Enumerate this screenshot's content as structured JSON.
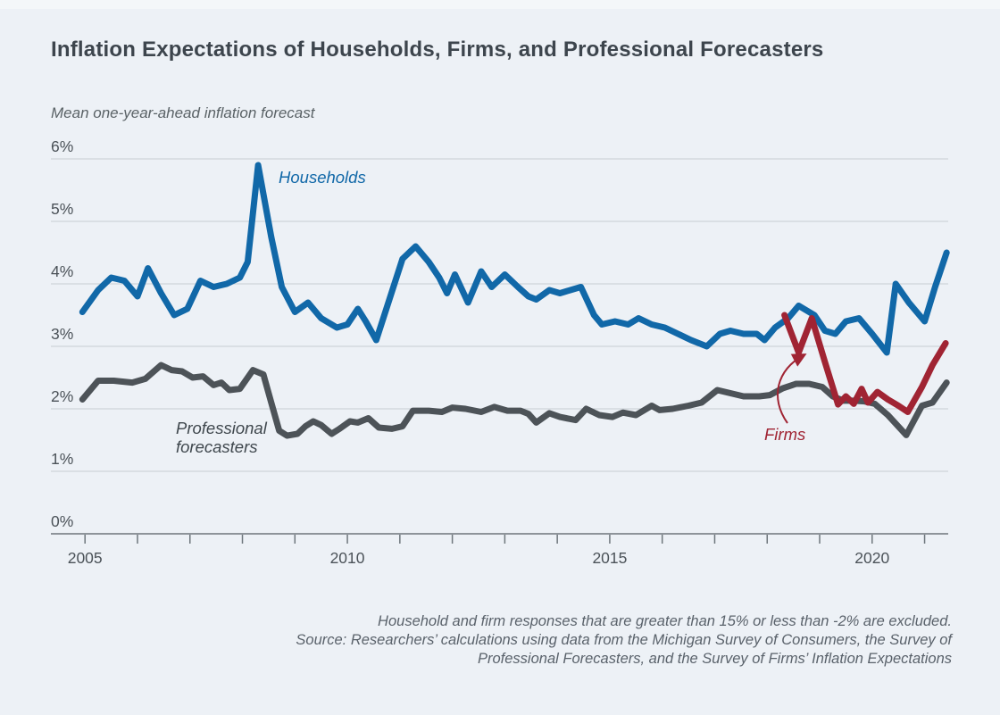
{
  "title": "Inflation Expectations of Households, Firms, and Professional Forecasters",
  "subtitle": "Mean one-year-ahead inflation forecast",
  "labels": {
    "households": "Households",
    "professional_line1": "Professional",
    "professional_line2": "forecasters",
    "firms": "Firms"
  },
  "footnote_lines": [
    "Household and firm responses that are greater than 15% or less than -2% are excluded.",
    "Source: Researchers’ calculations using data from the Michigan Survey of Consumers, the Survey of",
    "Professional Forecasters, and the Survey of Firms’ Inflation Expectations"
  ],
  "colors": {
    "background": "#edf1f6",
    "grid": "#c7cdd3",
    "axis": "#6e767c",
    "title": "#3d454d",
    "text": "#4b5258",
    "footnote": "#5a626b",
    "households": "#1168a8",
    "professional": "#4d5358",
    "firms": "#a02433"
  },
  "chart_data": {
    "type": "line",
    "title": "Inflation Expectations of Households, Firms, and Professional Forecasters",
    "ylabel": "Mean one-year-ahead inflation forecast",
    "xlim": [
      2004.35,
      2021.45
    ],
    "ylim": [
      0,
      6
    ],
    "y_ticks": [
      0,
      1,
      2,
      3,
      4,
      5,
      6
    ],
    "y_tick_suffix": "%",
    "x_ticks": [
      2005,
      2006,
      2007,
      2008,
      2009,
      2010,
      2011,
      2012,
      2013,
      2014,
      2015,
      2016,
      2017,
      2018,
      2019,
      2020,
      2021
    ],
    "x_labeled_ticks": [
      2005,
      2010,
      2015,
      2020
    ],
    "grid": "horizontal",
    "legend_position": "inline-labels",
    "series": [
      {
        "name": "Households",
        "color": "#1168a8",
        "points": [
          [
            2004.95,
            3.55
          ],
          [
            2005.25,
            3.9
          ],
          [
            2005.5,
            4.1
          ],
          [
            2005.75,
            4.05
          ],
          [
            2006.0,
            3.8
          ],
          [
            2006.2,
            4.25
          ],
          [
            2006.45,
            3.85
          ],
          [
            2006.7,
            3.5
          ],
          [
            2006.95,
            3.6
          ],
          [
            2007.2,
            4.05
          ],
          [
            2007.45,
            3.95
          ],
          [
            2007.7,
            4.0
          ],
          [
            2007.95,
            4.1
          ],
          [
            2008.1,
            4.35
          ],
          [
            2008.3,
            5.9
          ],
          [
            2008.55,
            4.75
          ],
          [
            2008.75,
            3.95
          ],
          [
            2009.0,
            3.55
          ],
          [
            2009.25,
            3.7
          ],
          [
            2009.5,
            3.45
          ],
          [
            2009.8,
            3.3
          ],
          [
            2010.0,
            3.35
          ],
          [
            2010.2,
            3.6
          ],
          [
            2010.35,
            3.4
          ],
          [
            2010.55,
            3.1
          ],
          [
            2010.8,
            3.75
          ],
          [
            2011.05,
            4.4
          ],
          [
            2011.3,
            4.6
          ],
          [
            2011.55,
            4.35
          ],
          [
            2011.75,
            4.1
          ],
          [
            2011.9,
            3.85
          ],
          [
            2012.05,
            4.15
          ],
          [
            2012.3,
            3.7
          ],
          [
            2012.55,
            4.2
          ],
          [
            2012.75,
            3.95
          ],
          [
            2013.0,
            4.15
          ],
          [
            2013.25,
            3.95
          ],
          [
            2013.45,
            3.8
          ],
          [
            2013.6,
            3.75
          ],
          [
            2013.85,
            3.9
          ],
          [
            2014.05,
            3.85
          ],
          [
            2014.25,
            3.9
          ],
          [
            2014.45,
            3.95
          ],
          [
            2014.7,
            3.5
          ],
          [
            2014.85,
            3.35
          ],
          [
            2015.1,
            3.4
          ],
          [
            2015.35,
            3.35
          ],
          [
            2015.55,
            3.45
          ],
          [
            2015.8,
            3.35
          ],
          [
            2016.05,
            3.3
          ],
          [
            2016.3,
            3.2
          ],
          [
            2016.55,
            3.1
          ],
          [
            2016.85,
            3.0
          ],
          [
            2017.1,
            3.2
          ],
          [
            2017.3,
            3.25
          ],
          [
            2017.55,
            3.2
          ],
          [
            2017.8,
            3.2
          ],
          [
            2017.95,
            3.1
          ],
          [
            2018.15,
            3.3
          ],
          [
            2018.4,
            3.45
          ],
          [
            2018.6,
            3.65
          ],
          [
            2018.9,
            3.5
          ],
          [
            2019.1,
            3.25
          ],
          [
            2019.3,
            3.2
          ],
          [
            2019.5,
            3.4
          ],
          [
            2019.75,
            3.45
          ],
          [
            2020.0,
            3.2
          ],
          [
            2020.28,
            2.9
          ],
          [
            2020.45,
            4.0
          ],
          [
            2020.7,
            3.7
          ],
          [
            2021.0,
            3.4
          ],
          [
            2021.2,
            3.95
          ],
          [
            2021.42,
            4.5
          ]
        ]
      },
      {
        "name": "Professional forecasters",
        "color": "#4d5358",
        "points": [
          [
            2004.95,
            2.15
          ],
          [
            2005.25,
            2.45
          ],
          [
            2005.55,
            2.45
          ],
          [
            2005.9,
            2.42
          ],
          [
            2006.15,
            2.48
          ],
          [
            2006.45,
            2.7
          ],
          [
            2006.65,
            2.62
          ],
          [
            2006.85,
            2.6
          ],
          [
            2007.05,
            2.5
          ],
          [
            2007.25,
            2.52
          ],
          [
            2007.45,
            2.38
          ],
          [
            2007.6,
            2.42
          ],
          [
            2007.75,
            2.3
          ],
          [
            2007.95,
            2.32
          ],
          [
            2008.2,
            2.62
          ],
          [
            2008.4,
            2.55
          ],
          [
            2008.55,
            2.1
          ],
          [
            2008.7,
            1.65
          ],
          [
            2008.85,
            1.57
          ],
          [
            2009.05,
            1.6
          ],
          [
            2009.2,
            1.72
          ],
          [
            2009.35,
            1.8
          ],
          [
            2009.5,
            1.74
          ],
          [
            2009.7,
            1.6
          ],
          [
            2009.85,
            1.68
          ],
          [
            2010.05,
            1.8
          ],
          [
            2010.2,
            1.78
          ],
          [
            2010.4,
            1.85
          ],
          [
            2010.6,
            1.7
          ],
          [
            2010.85,
            1.68
          ],
          [
            2011.05,
            1.72
          ],
          [
            2011.25,
            1.97
          ],
          [
            2011.55,
            1.97
          ],
          [
            2011.8,
            1.95
          ],
          [
            2012.0,
            2.02
          ],
          [
            2012.25,
            2.0
          ],
          [
            2012.55,
            1.95
          ],
          [
            2012.8,
            2.03
          ],
          [
            2013.05,
            1.97
          ],
          [
            2013.3,
            1.97
          ],
          [
            2013.45,
            1.92
          ],
          [
            2013.6,
            1.78
          ],
          [
            2013.85,
            1.93
          ],
          [
            2014.05,
            1.87
          ],
          [
            2014.35,
            1.82
          ],
          [
            2014.55,
            2.0
          ],
          [
            2014.8,
            1.9
          ],
          [
            2015.05,
            1.87
          ],
          [
            2015.25,
            1.94
          ],
          [
            2015.5,
            1.9
          ],
          [
            2015.8,
            2.05
          ],
          [
            2015.95,
            1.98
          ],
          [
            2016.2,
            2.0
          ],
          [
            2016.5,
            2.05
          ],
          [
            2016.75,
            2.1
          ],
          [
            2017.05,
            2.3
          ],
          [
            2017.3,
            2.25
          ],
          [
            2017.55,
            2.2
          ],
          [
            2017.85,
            2.2
          ],
          [
            2018.05,
            2.22
          ],
          [
            2018.3,
            2.33
          ],
          [
            2018.55,
            2.4
          ],
          [
            2018.8,
            2.4
          ],
          [
            2019.05,
            2.35
          ],
          [
            2019.25,
            2.2
          ],
          [
            2019.45,
            2.13
          ],
          [
            2019.65,
            2.13
          ],
          [
            2019.85,
            2.12
          ],
          [
            2020.05,
            2.08
          ],
          [
            2020.3,
            1.9
          ],
          [
            2020.65,
            1.58
          ],
          [
            2020.95,
            2.05
          ],
          [
            2021.15,
            2.1
          ],
          [
            2021.42,
            2.42
          ]
        ]
      },
      {
        "name": "Firms",
        "color": "#a02433",
        "points": [
          [
            2018.33,
            3.5
          ],
          [
            2018.6,
            2.9
          ],
          [
            2018.85,
            3.45
          ],
          [
            2019.1,
            2.75
          ],
          [
            2019.35,
            2.07
          ],
          [
            2019.5,
            2.2
          ],
          [
            2019.65,
            2.08
          ],
          [
            2019.8,
            2.32
          ],
          [
            2019.92,
            2.1
          ],
          [
            2020.1,
            2.27
          ],
          [
            2020.3,
            2.15
          ],
          [
            2020.5,
            2.05
          ],
          [
            2020.68,
            1.95
          ],
          [
            2020.95,
            2.35
          ],
          [
            2021.15,
            2.7
          ],
          [
            2021.4,
            3.05
          ]
        ]
      }
    ]
  }
}
